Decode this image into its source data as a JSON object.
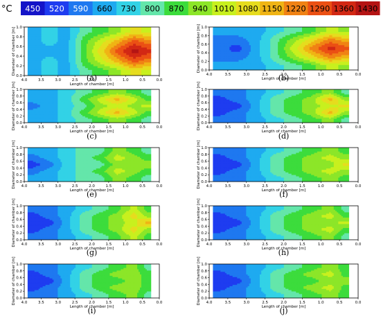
{
  "colorbar": {
    "unit": "°C",
    "levels": [
      "450",
      "520",
      "590",
      "660",
      "730",
      "800",
      "870",
      "940",
      "1010",
      "1080",
      "1150",
      "1220",
      "1290",
      "1360",
      "1430"
    ],
    "colors": [
      "#1414c8",
      "#1e3cf0",
      "#1e78f0",
      "#1eaaf0",
      "#32d2e6",
      "#64e6aa",
      "#3cdc3c",
      "#8ce628",
      "#c8f01e",
      "#e6dc1e",
      "#f0b414",
      "#f08214",
      "#eb5014",
      "#d22814",
      "#b41414"
    ],
    "text_colors": [
      "#ffffff",
      "#ffffff",
      "#ffffff",
      "#000000",
      "#000000",
      "#000000",
      "#000000",
      "#000000",
      "#000000",
      "#000000",
      "#000000",
      "#000000",
      "#000000",
      "#000000",
      "#000000"
    ]
  },
  "chart_data": [
    {
      "type": "heatmap",
      "caption": "(a)",
      "xlabel": "Length of chamber [m]",
      "ylabel": "Diameter of chamber [m]",
      "x_ticks": [
        "4.0",
        "3.5",
        "3.0",
        "2.5",
        "2.0",
        "1.5",
        "1.0",
        "0.5",
        "0.0"
      ],
      "y_ticks": [
        "0.0",
        "0.2",
        "0.4",
        "0.6",
        "0.8",
        "1.0"
      ],
      "xlim": [
        4.0,
        0.0
      ],
      "ylim": [
        0.0,
        1.0
      ],
      "x": [
        3.75,
        3.25,
        2.75,
        2.25,
        1.75,
        1.25,
        0.75,
        0.35
      ],
      "y": [
        0.1,
        0.3,
        0.5,
        0.7,
        0.9
      ],
      "z": [
        [
          3,
          4,
          3,
          5,
          6,
          7,
          9,
          8
        ],
        [
          3,
          4,
          3,
          6,
          8,
          10,
          12,
          11
        ],
        [
          3,
          3,
          3,
          6,
          9,
          12,
          14,
          13
        ],
        [
          3,
          4,
          3,
          6,
          8,
          10,
          12,
          11
        ],
        [
          3,
          4,
          3,
          5,
          6,
          7,
          9,
          8
        ]
      ]
    },
    {
      "type": "heatmap",
      "caption": "(b)",
      "xlabel": "Length of chamber [m]",
      "ylabel": "Diameter of chamber [m]",
      "x_ticks": [
        "4.0",
        "3.5",
        "3.0",
        "2.5",
        "2.0",
        "1.5",
        "1.0",
        "0.5",
        "0.0"
      ],
      "y_ticks": [
        "0.0",
        "0.2",
        "0.4",
        "0.6",
        "0.8",
        "1.0"
      ],
      "xlim": [
        4.0,
        0.0
      ],
      "ylim": [
        0.0,
        1.0
      ],
      "x": [
        3.75,
        3.25,
        2.75,
        2.25,
        1.75,
        1.25,
        0.75,
        0.35
      ],
      "y": [
        0.1,
        0.3,
        0.5,
        0.7,
        0.9
      ],
      "z": [
        [
          3,
          3,
          3,
          4,
          5,
          6,
          8,
          7
        ],
        [
          2,
          2,
          3,
          5,
          7,
          9,
          11,
          10
        ],
        [
          2,
          1,
          3,
          5,
          8,
          11,
          13,
          12
        ],
        [
          2,
          2,
          3,
          5,
          7,
          9,
          11,
          10
        ],
        [
          3,
          3,
          3,
          4,
          5,
          6,
          8,
          7
        ]
      ]
    },
    {
      "type": "heatmap",
      "caption": "(c)",
      "xlabel": "Length of chamber [m]",
      "ylabel": "Diameter of chamber [m]",
      "x_ticks": [
        "4.0",
        "3.5",
        "3.0",
        "2.5",
        "2.0",
        "1.5",
        "1.0",
        "0.5",
        "0.0"
      ],
      "y_ticks": [
        "0.0",
        "0.2",
        "0.4",
        "0.6",
        "0.8",
        "1.0"
      ],
      "xlim": [
        4.0,
        0.0
      ],
      "ylim": [
        0.0,
        1.0
      ],
      "x": [
        3.75,
        3.25,
        2.75,
        2.25,
        1.75,
        1.25,
        0.75,
        0.35
      ],
      "y": [
        0.1,
        0.3,
        0.5,
        0.7,
        0.9
      ],
      "z": [
        [
          3,
          3,
          4,
          5,
          6,
          7,
          6,
          5
        ],
        [
          3,
          3,
          4,
          6,
          8,
          10,
          8,
          6
        ],
        [
          2,
          3,
          4,
          5,
          7,
          8,
          7,
          8
        ],
        [
          3,
          3,
          4,
          6,
          8,
          10,
          8,
          6
        ],
        [
          3,
          3,
          4,
          5,
          6,
          7,
          6,
          5
        ]
      ]
    },
    {
      "type": "heatmap",
      "caption": "(d)",
      "xlabel": "Length of chamber [m]",
      "ylabel": "Diameter of chamber [m]",
      "x_ticks": [
        "4.0",
        "3.5",
        "3.0",
        "2.5",
        "2.0",
        "1.5",
        "1.0",
        "0.5",
        "0.0"
      ],
      "y_ticks": [
        "0.0",
        "0.2",
        "0.4",
        "0.6",
        "0.8",
        "1.0"
      ],
      "xlim": [
        4.0,
        0.0
      ],
      "ylim": [
        0.0,
        1.0
      ],
      "x": [
        3.75,
        3.25,
        2.75,
        2.25,
        1.75,
        1.25,
        0.75,
        0.35
      ],
      "y": [
        0.1,
        0.3,
        0.5,
        0.7,
        0.9
      ],
      "z": [
        [
          2,
          2,
          3,
          4,
          5,
          6,
          7,
          5
        ],
        [
          1,
          2,
          3,
          5,
          6,
          7,
          10,
          7
        ],
        [
          1,
          1,
          3,
          5,
          6,
          7,
          8,
          9
        ],
        [
          1,
          2,
          3,
          5,
          6,
          7,
          10,
          7
        ],
        [
          2,
          2,
          3,
          4,
          5,
          6,
          7,
          5
        ]
      ]
    },
    {
      "type": "heatmap",
      "caption": "(e)",
      "xlabel": "Length of chamber [m]",
      "ylabel": "Diameter of chamber [m]",
      "x_ticks": [
        "4.0",
        "3.5",
        "3.0",
        "2.5",
        "2.0",
        "1.5",
        "1.0",
        "0.5",
        "0.0"
      ],
      "y_ticks": [
        "0.0",
        "0.2",
        "0.4",
        "0.6",
        "0.8",
        "1.0"
      ],
      "xlim": [
        4.0,
        0.0
      ],
      "ylim": [
        0.0,
        1.0
      ],
      "x": [
        3.75,
        3.25,
        2.75,
        2.25,
        1.75,
        1.25,
        0.75,
        0.35
      ],
      "y": [
        0.1,
        0.3,
        0.5,
        0.7,
        0.9
      ],
      "z": [
        [
          3,
          3,
          4,
          5,
          5,
          7,
          6,
          5
        ],
        [
          2,
          3,
          4,
          5,
          6,
          8,
          7,
          6
        ],
        [
          1,
          2,
          4,
          5,
          5,
          7,
          7,
          7
        ],
        [
          2,
          3,
          4,
          5,
          6,
          8,
          7,
          6
        ],
        [
          3,
          3,
          4,
          5,
          5,
          7,
          6,
          5
        ]
      ]
    },
    {
      "type": "heatmap",
      "caption": "(f)",
      "xlabel": "Length of chamber [m]",
      "ylabel": "Diameter of chamber [m]",
      "x_ticks": [
        "4.0",
        "3.5",
        "3.0",
        "2.5",
        "2.0",
        "1.5",
        "1.0",
        "0.5",
        "0.0"
      ],
      "y_ticks": [
        "0.0",
        "0.2",
        "0.4",
        "0.6",
        "0.8",
        "1.0"
      ],
      "xlim": [
        4.0,
        0.0
      ],
      "ylim": [
        0.0,
        1.0
      ],
      "x": [
        3.75,
        3.25,
        2.75,
        2.25,
        1.75,
        1.25,
        0.75,
        0.35
      ],
      "y": [
        0.1,
        0.3,
        0.5,
        0.7,
        0.9
      ],
      "z": [
        [
          2,
          2,
          3,
          4,
          5,
          6,
          7,
          6
        ],
        [
          1,
          2,
          3,
          5,
          6,
          7,
          8,
          7
        ],
        [
          1,
          1,
          3,
          5,
          6,
          7,
          7,
          9
        ],
        [
          1,
          2,
          3,
          5,
          6,
          7,
          8,
          7
        ],
        [
          2,
          2,
          3,
          4,
          5,
          6,
          7,
          6
        ]
      ]
    },
    {
      "type": "heatmap",
      "caption": "(g)",
      "xlabel": "Length of chamber [m]",
      "ylabel": "Diameter of chamber [m]",
      "x_ticks": [
        "4.0",
        "3.5",
        "3.0",
        "2.5",
        "2.0",
        "1.5",
        "1.0",
        "0.5",
        "0.0"
      ],
      "y_ticks": [
        "0.0",
        "0.2",
        "0.4",
        "0.6",
        "0.8",
        "1.0"
      ],
      "xlim": [
        4.0,
        0.0
      ],
      "ylim": [
        0.0,
        1.0
      ],
      "x": [
        3.75,
        3.25,
        2.75,
        2.25,
        1.75,
        1.25,
        0.75,
        0.35
      ],
      "y": [
        0.1,
        0.3,
        0.5,
        0.7,
        0.9
      ],
      "z": [
        [
          2,
          2,
          3,
          4,
          5,
          6,
          8,
          6
        ],
        [
          1,
          2,
          3,
          5,
          6,
          7,
          9,
          7
        ],
        [
          1,
          1,
          3,
          5,
          6,
          7,
          8,
          10
        ],
        [
          1,
          2,
          3,
          5,
          6,
          7,
          9,
          7
        ],
        [
          2,
          2,
          3,
          4,
          5,
          6,
          8,
          6
        ]
      ]
    },
    {
      "type": "heatmap",
      "caption": "(h)",
      "xlabel": "Length of chamber [m]",
      "ylabel": "Diameter of chamber [m]",
      "x_ticks": [
        "4.0",
        "3.5",
        "3.0",
        "2.5",
        "2.0",
        "1.5",
        "1.0",
        "0.5",
        "0.0"
      ],
      "y_ticks": [
        "0.0",
        "0.2",
        "0.4",
        "0.6",
        "0.8",
        "1.0"
      ],
      "xlim": [
        4.0,
        0.0
      ],
      "ylim": [
        0.0,
        1.0
      ],
      "x": [
        3.75,
        3.25,
        2.75,
        2.25,
        1.75,
        1.25,
        0.75,
        0.35
      ],
      "y": [
        0.1,
        0.3,
        0.5,
        0.7,
        0.9
      ],
      "z": [
        [
          2,
          2,
          3,
          4,
          5,
          6,
          7,
          5
        ],
        [
          1,
          2,
          3,
          5,
          6,
          7,
          8,
          6
        ],
        [
          1,
          1,
          3,
          5,
          6,
          7,
          7,
          8
        ],
        [
          1,
          2,
          3,
          5,
          6,
          7,
          8,
          6
        ],
        [
          2,
          2,
          3,
          4,
          5,
          6,
          7,
          5
        ]
      ]
    },
    {
      "type": "heatmap",
      "caption": "(i)",
      "xlabel": "Length of chamber [m]",
      "ylabel": "Diameter of chamber [m]",
      "x_ticks": [
        "4.0",
        "3.5",
        "3.0",
        "2.5",
        "2.0",
        "1.5",
        "1.0",
        "0.5",
        "0.0"
      ],
      "y_ticks": [
        "0.0",
        "0.2",
        "0.4",
        "0.6",
        "0.8",
        "1.0"
      ],
      "xlim": [
        4.0,
        0.0
      ],
      "ylim": [
        0.0,
        1.0
      ],
      "x": [
        3.75,
        3.25,
        2.75,
        2.25,
        1.75,
        1.25,
        0.75,
        0.35
      ],
      "y": [
        0.1,
        0.3,
        0.5,
        0.7,
        0.9
      ],
      "z": [
        [
          2,
          2,
          3,
          4,
          5,
          6,
          7,
          5
        ],
        [
          1,
          2,
          3,
          5,
          6,
          7,
          7,
          6
        ],
        [
          1,
          1,
          3,
          5,
          6,
          6,
          7,
          6
        ],
        [
          1,
          2,
          3,
          5,
          6,
          7,
          7,
          6
        ],
        [
          2,
          2,
          3,
          4,
          5,
          6,
          7,
          5
        ]
      ]
    },
    {
      "type": "heatmap",
      "caption": "(j)",
      "xlabel": "Length of chamber [m]",
      "ylabel": "Diameter of chamber [m]",
      "x_ticks": [
        "4.0",
        "3.5",
        "3.0",
        "2.5",
        "2.0",
        "1.5",
        "1.0",
        "0.5",
        "0.0"
      ],
      "y_ticks": [
        "0.0",
        "0.2",
        "0.4",
        "0.6",
        "0.8",
        "1.0"
      ],
      "xlim": [
        4.0,
        0.0
      ],
      "ylim": [
        0.0,
        1.0
      ],
      "x": [
        3.75,
        3.25,
        2.75,
        2.25,
        1.75,
        1.25,
        0.75,
        0.35
      ],
      "y": [
        0.1,
        0.3,
        0.5,
        0.7,
        0.9
      ],
      "z": [
        [
          2,
          2,
          3,
          4,
          5,
          6,
          7,
          6
        ],
        [
          1,
          2,
          3,
          5,
          6,
          7,
          8,
          6
        ],
        [
          1,
          1,
          3,
          5,
          6,
          6,
          7,
          7
        ],
        [
          1,
          2,
          3,
          5,
          6,
          7,
          8,
          6
        ],
        [
          2,
          2,
          3,
          4,
          5,
          6,
          7,
          6
        ]
      ]
    }
  ]
}
